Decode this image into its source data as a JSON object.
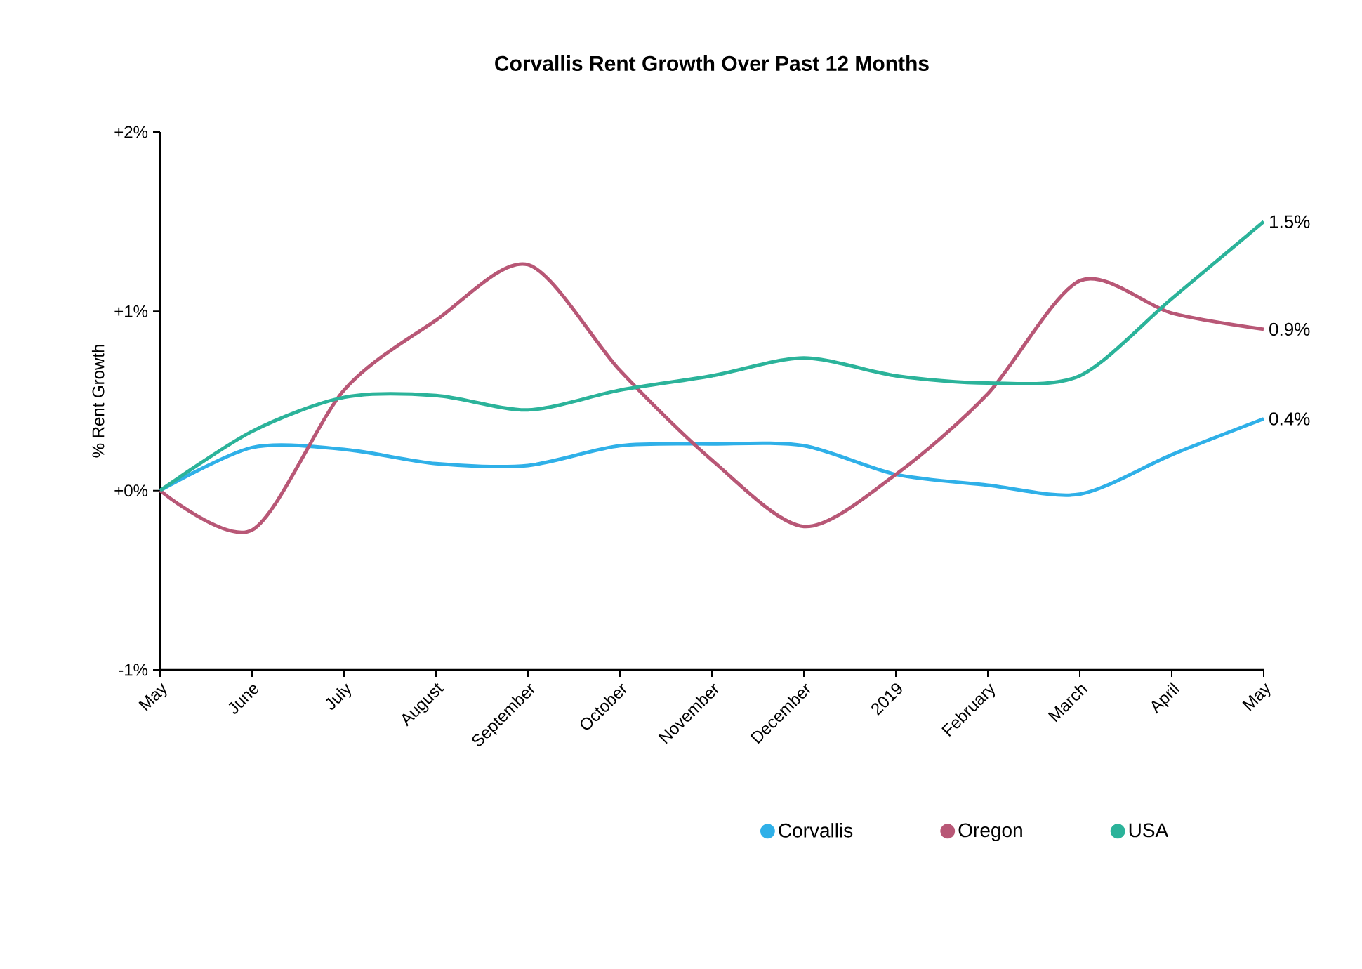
{
  "chart_data": {
    "type": "line",
    "title": "Corvallis Rent Growth Over Past 12 Months",
    "ylabel": "% Rent Growth",
    "categories": [
      "May",
      "June",
      "July",
      "August",
      "September",
      "October",
      "November",
      "December",
      "2019",
      "February",
      "March",
      "April",
      "May"
    ],
    "ylim": [
      -1,
      2
    ],
    "yticks": [
      {
        "value": 2,
        "label": "+2%"
      },
      {
        "value": 1,
        "label": "+1%"
      },
      {
        "value": 0,
        "label": "+0%"
      },
      {
        "value": -1,
        "label": "-1%"
      }
    ],
    "legend": "bottom",
    "grid": false,
    "series": [
      {
        "name": "Corvallis",
        "color": "#2fb0e8",
        "values": [
          0,
          0.24,
          0.23,
          0.15,
          0.14,
          0.25,
          0.26,
          0.25,
          0.09,
          0.03,
          -0.02,
          0.2,
          0.4
        ],
        "value_labels": [
          null,
          null,
          null,
          null,
          null,
          null,
          null,
          null,
          null,
          null,
          null,
          null,
          "0.4%"
        ]
      },
      {
        "name": "Oregon",
        "color": "#b85776",
        "values": [
          0,
          -0.22,
          0.56,
          0.95,
          1.26,
          0.67,
          0.17,
          -0.2,
          0.09,
          0.54,
          1.17,
          0.99,
          0.9
        ],
        "value_labels": [
          null,
          null,
          null,
          null,
          null,
          null,
          null,
          null,
          null,
          null,
          null,
          null,
          "0.9%"
        ]
      },
      {
        "name": "USA",
        "color": "#2bb39a",
        "values": [
          0,
          0.33,
          0.52,
          0.53,
          0.45,
          0.56,
          0.64,
          0.74,
          0.64,
          0.6,
          0.64,
          1.07,
          1.5
        ],
        "value_labels": [
          null,
          null,
          null,
          null,
          null,
          null,
          null,
          null,
          null,
          null,
          null,
          null,
          "1.5%"
        ]
      }
    ]
  }
}
